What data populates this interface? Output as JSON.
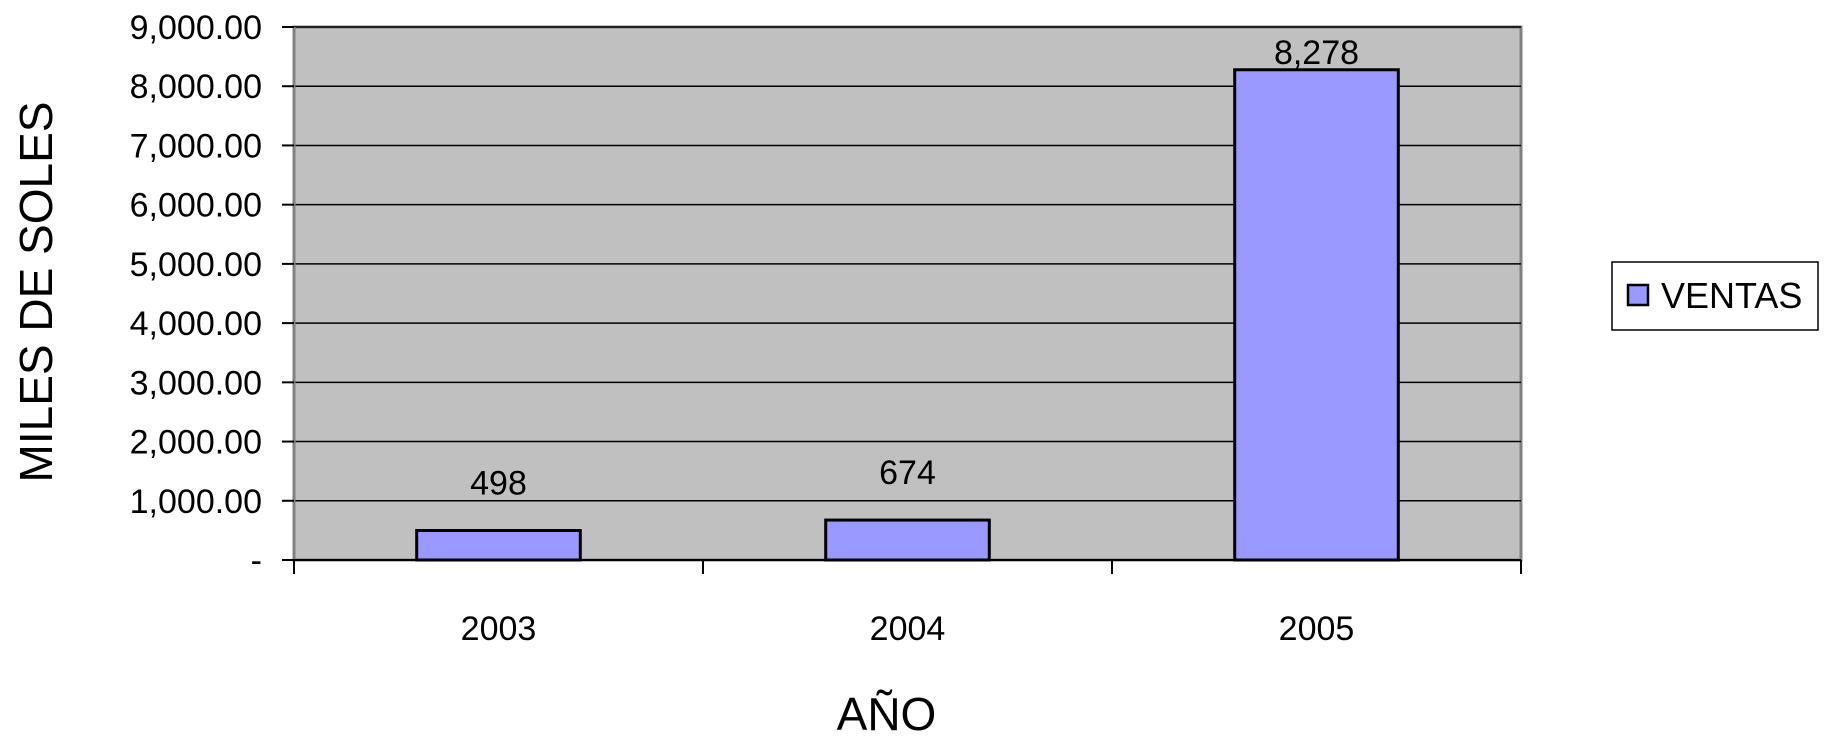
{
  "chart_data": {
    "type": "bar",
    "title": "",
    "xlabel": "AÑO",
    "ylabel": "MILES DE SOLES",
    "categories": [
      "2003",
      "2004",
      "2005"
    ],
    "series": [
      {
        "name": "VENTAS",
        "values": [
          498,
          674,
          8278
        ],
        "data_labels": [
          "498",
          "674",
          "8,278"
        ]
      }
    ],
    "ylim": [
      0,
      9000
    ],
    "yticks": [
      0,
      1000,
      2000,
      3000,
      4000,
      5000,
      6000,
      7000,
      8000,
      9000
    ],
    "ytick_labels": [
      "-",
      "1,000.00",
      "2,000.00",
      "3,000.00",
      "4,000.00",
      "5,000.00",
      "6,000.00",
      "7,000.00",
      "8,000.00",
      "9,000.00"
    ],
    "grid": true,
    "legend": "right",
    "colors": {
      "plot_background": "#c0c0c0",
      "bar_fill": "#9999ff",
      "bar_stroke": "#000000",
      "gridline": "#000000",
      "frame": "#808080"
    }
  }
}
